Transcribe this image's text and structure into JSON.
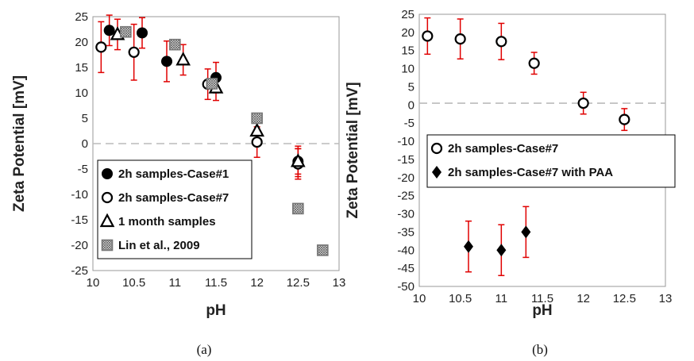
{
  "chart_data": [
    {
      "type": "scatter",
      "title": "",
      "caption": "(a)",
      "xlabel": "pH",
      "ylabel": "Zeta Potential [mV]",
      "xlim": [
        10,
        13
      ],
      "ylim": [
        -25,
        25
      ],
      "x_ticks": [
        10,
        10.5,
        11,
        11.5,
        12,
        12.5,
        13
      ],
      "y_ticks": [
        25,
        20,
        15,
        10,
        5,
        0,
        -5,
        -10,
        -15,
        -20,
        -25
      ],
      "reference_line": {
        "y": 0,
        "style": "dashed",
        "color": "#bbbbbb"
      },
      "legend_position": "bottom-left",
      "error_bar_color": "#e00000",
      "series": [
        {
          "name": "2h samples-Case#1",
          "marker": "filled-circle",
          "color": "#000000",
          "points": [
            {
              "x": 10.2,
              "y": 22.3,
              "err": 3
            },
            {
              "x": 10.6,
              "y": 21.8,
              "err": 3
            },
            {
              "x": 10.9,
              "y": 16.2,
              "err": 4
            },
            {
              "x": 11.5,
              "y": 13,
              "err": 3
            },
            {
              "x": 12.5,
              "y": -3.5,
              "err": 3
            }
          ]
        },
        {
          "name": "2h samples-Case#7",
          "marker": "open-circle",
          "color": "#000000",
          "points": [
            {
              "x": 10.1,
              "y": 19,
              "err": 5
            },
            {
              "x": 10.5,
              "y": 18,
              "err": 5.5
            },
            {
              "x": 11.4,
              "y": 11.7,
              "err": 3
            },
            {
              "x": 12,
              "y": 0.3,
              "err": 3
            },
            {
              "x": 12.5,
              "y": -4,
              "err": 3
            }
          ]
        },
        {
          "name": "1 month samples",
          "marker": "open-triangle",
          "color": "#000000",
          "points": [
            {
              "x": 10.3,
              "y": 21.5,
              "err": 3
            },
            {
              "x": 11.1,
              "y": 16.5,
              "err": 3
            },
            {
              "x": 11.5,
              "y": 11,
              "err": 2.5
            },
            {
              "x": 12,
              "y": 2.5,
              "err": 2
            },
            {
              "x": 12.5,
              "y": -3.5,
              "err": 2.5
            }
          ]
        },
        {
          "name": "Lin et al., 2009",
          "marker": "hatched-square",
          "color": "#777777",
          "points": [
            {
              "x": 10.4,
              "y": 22
            },
            {
              "x": 11,
              "y": 19.5
            },
            {
              "x": 11.45,
              "y": 11.8
            },
            {
              "x": 12,
              "y": 5
            },
            {
              "x": 12.5,
              "y": -12.8
            },
            {
              "x": 12.8,
              "y": -21
            }
          ]
        }
      ]
    },
    {
      "type": "scatter",
      "title": "",
      "caption": "(b)",
      "xlabel": "pH",
      "ylabel": "Zeta Potential [mV]",
      "xlim": [
        10,
        13
      ],
      "ylim": [
        -50,
        25
      ],
      "x_ticks": [
        10,
        10.5,
        11,
        11.5,
        12,
        12.5,
        13
      ],
      "y_ticks": [
        25,
        20,
        15,
        10,
        5,
        0,
        -5,
        -10,
        -15,
        -20,
        -25,
        -30,
        -35,
        -40,
        -45,
        -50
      ],
      "reference_line": {
        "y": 0.5,
        "style": "dashed",
        "color": "#bbbbbb"
      },
      "legend_position": "center-right",
      "error_bar_color": "#e00000",
      "series": [
        {
          "name": "2h samples-Case#7",
          "marker": "open-circle",
          "color": "#000000",
          "points": [
            {
              "x": 10.1,
              "y": 19,
              "err": 5
            },
            {
              "x": 10.5,
              "y": 18.2,
              "err": 5.5
            },
            {
              "x": 11,
              "y": 17.5,
              "err": 5
            },
            {
              "x": 11.4,
              "y": 11.5,
              "err": 3
            },
            {
              "x": 12,
              "y": 0.5,
              "err": 3
            },
            {
              "x": 12.5,
              "y": -4,
              "err": 3
            }
          ]
        },
        {
          "name": "2h samples-Case#7 with PAA",
          "marker": "filled-diamond",
          "color": "#000000",
          "points": [
            {
              "x": 10.6,
              "y": -39,
              "err": 7
            },
            {
              "x": 11,
              "y": -40,
              "err": 7
            },
            {
              "x": 11.3,
              "y": -35,
              "err": 7
            }
          ]
        }
      ]
    }
  ]
}
